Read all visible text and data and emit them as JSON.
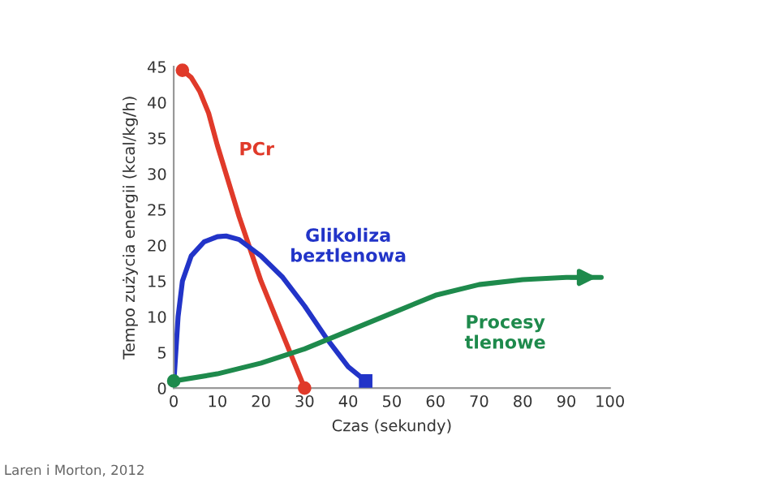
{
  "chart_data": {
    "type": "line",
    "xlabel": "Czas (sekundy)",
    "ylabel": "Tempo zużycia energii (kcal/kg/h)",
    "xlim": [
      0,
      100
    ],
    "xticks": [
      0,
      10,
      20,
      30,
      40,
      50,
      60,
      70,
      80,
      90,
      100
    ],
    "ylim": [
      0,
      45
    ],
    "yticks": [
      0,
      5,
      10,
      15,
      20,
      25,
      30,
      35,
      40,
      45
    ],
    "grid": false,
    "legend": false,
    "series": [
      {
        "name": "PCr",
        "color": "#e03a2a",
        "x": [
          2,
          4,
          6,
          8,
          10,
          15,
          20,
          25,
          30
        ],
        "values": [
          44.5,
          43.5,
          41.5,
          38.5,
          34,
          24,
          15,
          7.5,
          0
        ]
      },
      {
        "name": "Glikoliza\nbeztlenowa",
        "color": "#2234c8",
        "x": [
          0,
          1,
          2,
          4,
          7,
          10,
          12,
          15,
          20,
          25,
          30,
          35,
          40,
          44
        ],
        "values": [
          0.5,
          10,
          15,
          18.5,
          20.5,
          21.2,
          21.3,
          20.8,
          18.5,
          15.5,
          11.5,
          7,
          3,
          1
        ]
      },
      {
        "name": "Procesy\ntlenowe",
        "color": "#1e8a4c",
        "x": [
          0,
          10,
          20,
          30,
          40,
          50,
          60,
          70,
          80,
          90,
          98
        ],
        "values": [
          1,
          2,
          3.5,
          5.5,
          8,
          10.5,
          13,
          14.5,
          15.2,
          15.5,
          15.5
        ]
      }
    ],
    "annotations": [
      "Laren i Morton, 2012"
    ]
  }
}
